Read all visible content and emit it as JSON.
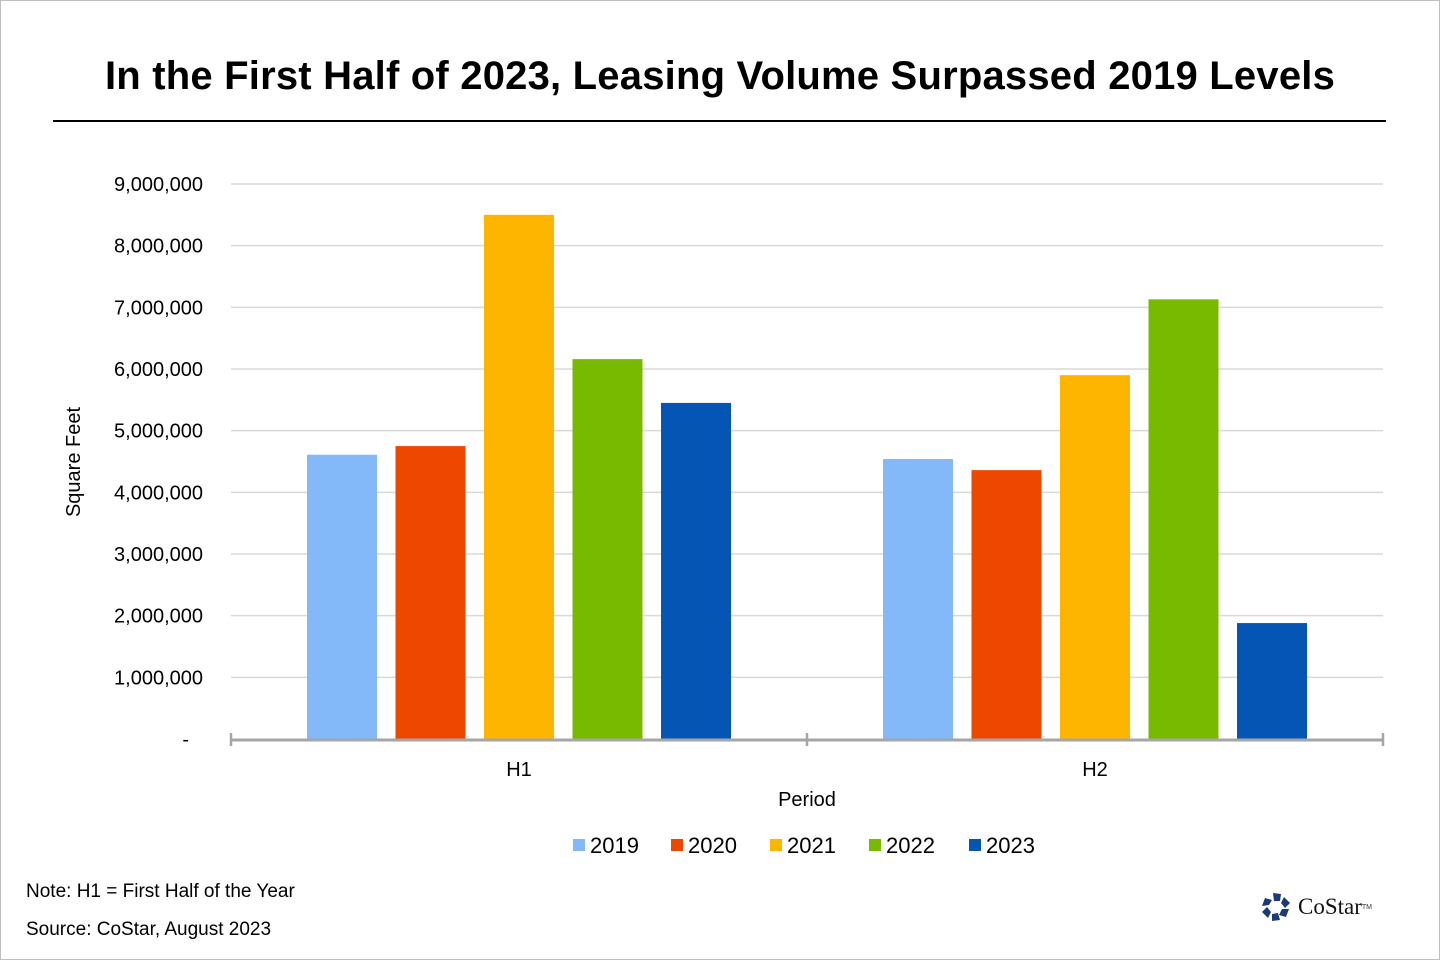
{
  "chart_data": {
    "type": "bar",
    "title": "In the First Half of 2023, Leasing Volume Surpassed 2019 Levels",
    "xlabel": "Period",
    "ylabel": "Square Feet",
    "categories": [
      "H1",
      "H2"
    ],
    "ylim": [
      0,
      9000000
    ],
    "yticks": [
      0,
      1000000,
      2000000,
      3000000,
      4000000,
      5000000,
      6000000,
      7000000,
      8000000,
      9000000
    ],
    "ytick_labels": [
      "-",
      "1,000,000",
      "2,000,000",
      "3,000,000",
      "4,000,000",
      "5,000,000",
      "6,000,000",
      "7,000,000",
      "8,000,000",
      "9,000,000"
    ],
    "grid": true,
    "legend_position": "bottom",
    "series": [
      {
        "name": "2019",
        "color": "#83B8F9",
        "values": [
          4610000,
          4540000
        ]
      },
      {
        "name": "2020",
        "color": "#EE4800",
        "values": [
          4750000,
          4360000
        ]
      },
      {
        "name": "2021",
        "color": "#FDB500",
        "values": [
          8500000,
          5900000
        ]
      },
      {
        "name": "2022",
        "color": "#77BA00",
        "values": [
          6160000,
          7130000
        ]
      },
      {
        "name": "2023",
        "color": "#0555B5",
        "values": [
          5450000,
          1880000
        ]
      }
    ]
  },
  "footer": {
    "note": "Note: H1 = First Half of the Year",
    "source": "Source: CoStar, August  2023",
    "logo_text": "CoStar",
    "logo_tm": "TM",
    "logo_color": "#1B3A78"
  }
}
